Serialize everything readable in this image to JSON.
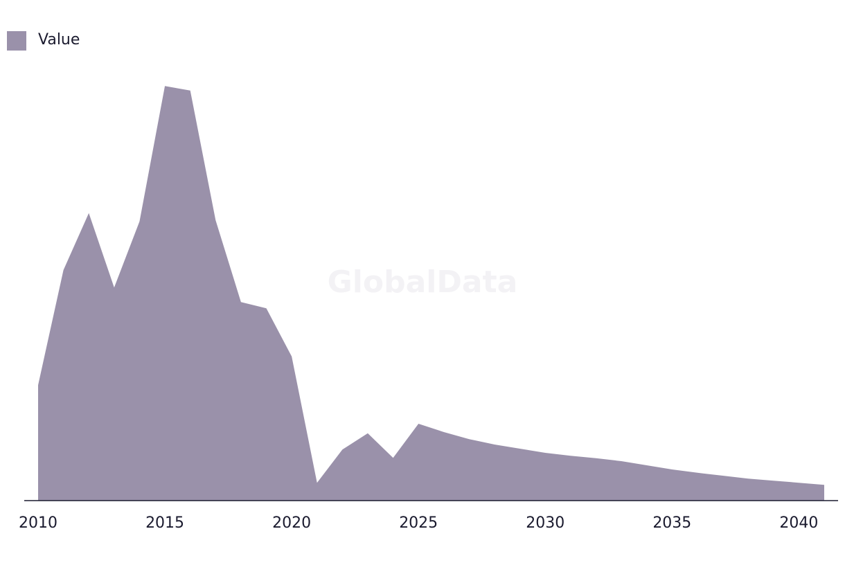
{
  "chart_data": {
    "type": "area",
    "watermark": "GlobalData",
    "x": [
      2010,
      2011,
      2012,
      2013,
      2014,
      2015,
      2016,
      2017,
      2018,
      2019,
      2020,
      2021,
      2022,
      2023,
      2024,
      2025,
      2026,
      2027,
      2028,
      2029,
      2030,
      2031,
      2032,
      2033,
      2034,
      2035,
      2036,
      2037,
      2038,
      2039,
      2040,
      2041
    ],
    "series": [
      {
        "name": "Value",
        "color": "#9a91aa",
        "values": [
          27.8,
          55.5,
          69.2,
          51.3,
          67.2,
          99.8,
          98.7,
          67.5,
          47.8,
          46.3,
          34.7,
          4.3,
          12.3,
          16.2,
          10.3,
          18.5,
          16.5,
          14.8,
          13.5,
          12.5,
          11.5,
          10.8,
          10.2,
          9.5,
          8.5,
          7.5,
          6.7,
          6.0,
          5.3,
          4.8,
          4.3,
          3.8
        ]
      }
    ],
    "xlim": [
      2010,
      2041
    ],
    "xticks": [
      2010,
      2015,
      2020,
      2025,
      2030,
      2035,
      2040
    ],
    "ylim": [
      0,
      100
    ],
    "legend": "top-left"
  }
}
